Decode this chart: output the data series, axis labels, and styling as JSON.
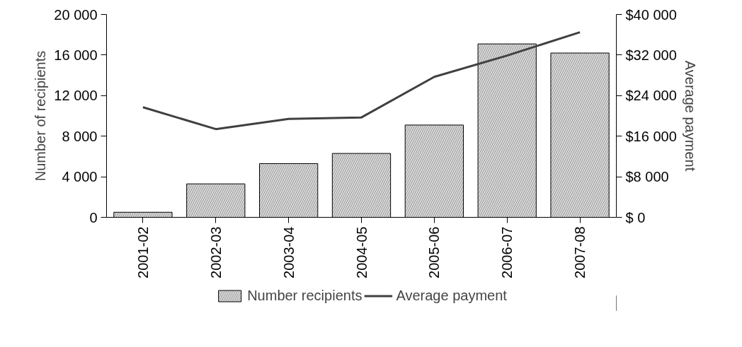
{
  "chart_data": {
    "type": "bar",
    "ylabel": "Number of recipients",
    "y2label": "Average payment",
    "categories": [
      "2001-02",
      "2002-03",
      "2003-04",
      "2004-05",
      "2005-06",
      "2006-07",
      "2007-08"
    ],
    "series": [
      {
        "name": "Number recipients",
        "color": "#d9d9d9",
        "values": [
          500,
          3300,
          5300,
          6300,
          9100,
          17100,
          16200
        ]
      },
      {
        "name": "Average payment",
        "type": "line",
        "axis": "y2",
        "color": "#404040",
        "values": [
          21700,
          17400,
          19400,
          19700,
          27700,
          31900,
          36500
        ]
      }
    ],
    "ylim": [
      0,
      20000
    ],
    "yticks": [
      {
        "value": 0,
        "label": "0"
      },
      {
        "value": 4000,
        "label": "4 000"
      },
      {
        "value": 8000,
        "label": "8 000"
      },
      {
        "value": 12000,
        "label": "12 000"
      },
      {
        "value": 16000,
        "label": "16 000"
      },
      {
        "value": 20000,
        "label": "20 000"
      }
    ],
    "y2lim": [
      0,
      40000
    ],
    "y2ticks": [
      {
        "value": 0,
        "label": "$ 0"
      },
      {
        "value": 8000,
        "label": "$8 000"
      },
      {
        "value": 16000,
        "label": "$16 000"
      },
      {
        "value": 24000,
        "label": "$24 000"
      },
      {
        "value": 32000,
        "label": "$32 000"
      },
      {
        "value": 40000,
        "label": "$40 000"
      }
    ],
    "grid": false,
    "legend": "bottom",
    "marker": "none",
    "line_style": "solid"
  }
}
